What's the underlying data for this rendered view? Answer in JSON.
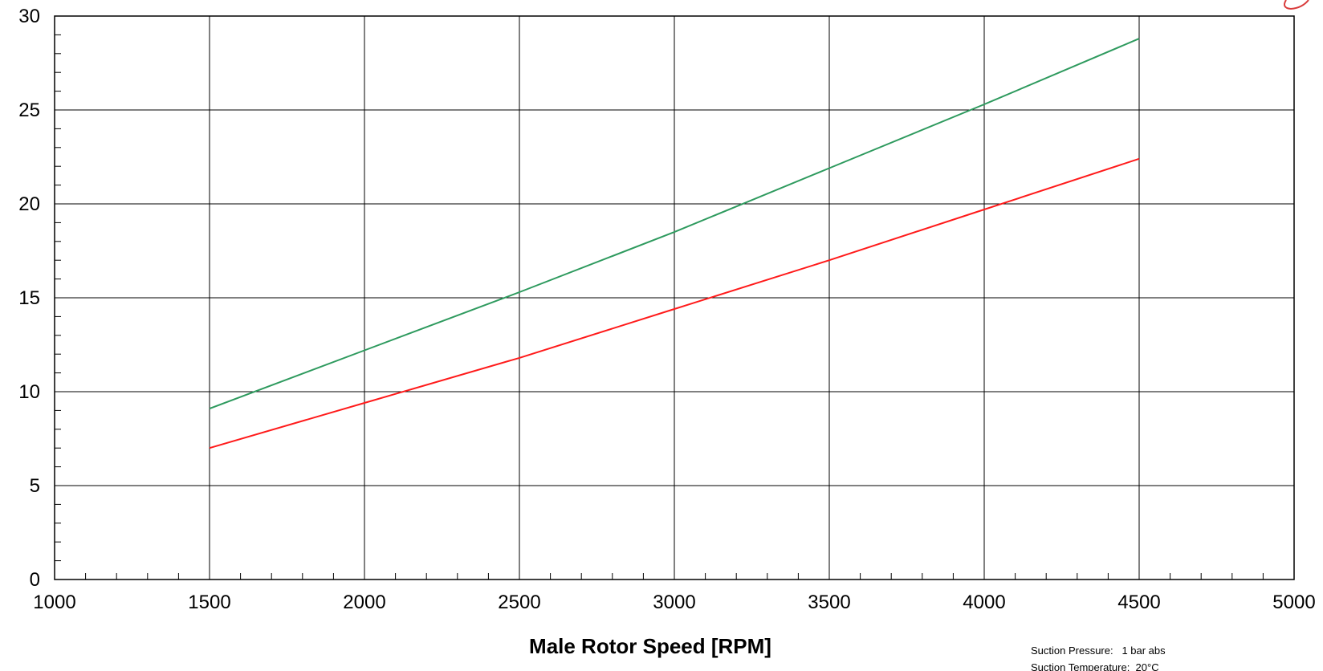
{
  "chart_data": {
    "type": "line",
    "xlabel": "Male Rotor Speed [RPM]",
    "ylabel": "",
    "xlim": [
      1000,
      5000
    ],
    "ylim": [
      0,
      30
    ],
    "x_ticks": [
      "1000",
      "1500",
      "2000",
      "2500",
      "3000",
      "3500",
      "4000",
      "4500",
      "5000"
    ],
    "y_ticks": [
      "0",
      "5",
      "10",
      "15",
      "20",
      "25",
      "30"
    ],
    "grid": true,
    "series": [
      {
        "color": "#2e9a5e",
        "x": [
          1500,
          2000,
          2500,
          3000,
          3500,
          4000,
          4500
        ],
        "y": [
          9.1,
          12.2,
          15.3,
          18.5,
          21.9,
          25.3,
          28.8
        ]
      },
      {
        "color": "#ff1a1a",
        "x": [
          1500,
          2000,
          2500,
          3000,
          3500,
          4000,
          4500
        ],
        "y": [
          7.0,
          9.4,
          11.8,
          14.4,
          17.0,
          19.7,
          22.4
        ]
      }
    ],
    "annotations": [
      "Suction Pressure:   1 bar abs",
      "Suction Temperature:  20°C"
    ]
  }
}
